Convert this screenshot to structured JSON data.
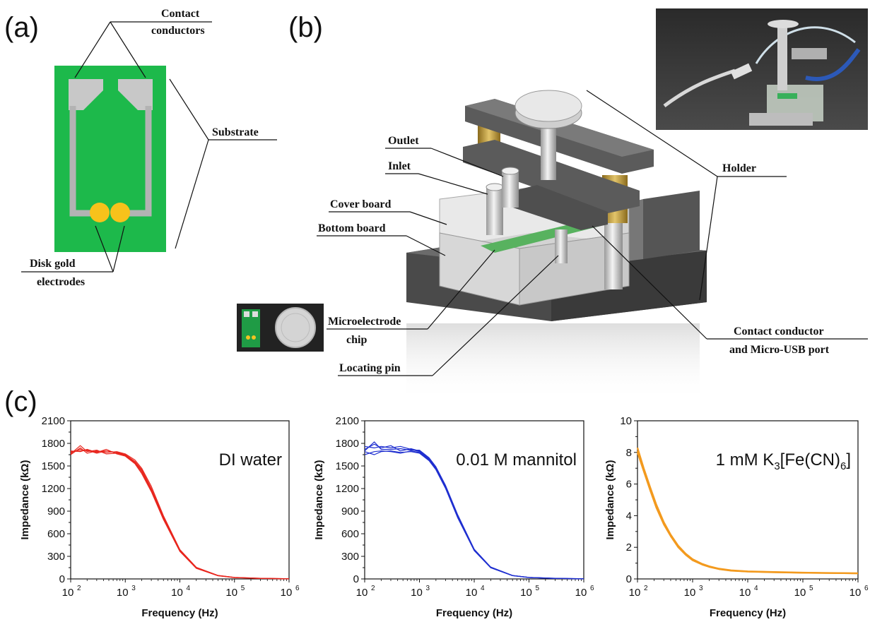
{
  "panels": {
    "a": "(a)",
    "b": "(b)",
    "c": "(c)"
  },
  "callouts": {
    "contact_conductors": [
      "Contact",
      "conductors"
    ],
    "substrate": "Substrate",
    "disk_gold_electrodes": [
      "Disk gold",
      "electrodes"
    ],
    "outlet": "Outlet",
    "inlet": "Inlet",
    "cover_board": "Cover board",
    "bottom_board": "Bottom board",
    "holder": "Holder",
    "microelectrode_chip": [
      "Microelectrode",
      "chip"
    ],
    "locating_pin": "Locating pin",
    "contact_conductor_usb": [
      "Contact conductor",
      "and Micro-USB port"
    ]
  },
  "colors": {
    "substrate_green": "#1db94b",
    "trace_gray": "#b3b3b3",
    "gold": "#f7c21b",
    "dark_board": "#555555",
    "series_di_water": "#e8251d",
    "series_mannitol": "#1f2fd0",
    "series_ferricyanide": "#f39a1e"
  },
  "chart_data": [
    {
      "type": "line",
      "annotation": "DI water",
      "xlabel": "Frequency (Hz)",
      "ylabel": "Impedance (kΩ)",
      "x_scale": "log",
      "xlim": [
        100,
        1000000
      ],
      "ylim": [
        0,
        2100
      ],
      "x_tick_labels": [
        {
          "base": "10",
          "exp": "2"
        },
        {
          "base": "10",
          "exp": "3"
        },
        {
          "base": "10",
          "exp": "4"
        },
        {
          "base": "10",
          "exp": "5"
        },
        {
          "base": "10",
          "exp": "6"
        }
      ],
      "y_ticks": [
        "0",
        "300",
        "600",
        "900",
        "1200",
        "1500",
        "1800",
        "2100"
      ],
      "y_tick_values": [
        0,
        300,
        600,
        900,
        1200,
        1500,
        1800,
        2100
      ],
      "color": "#e8251d",
      "x": [
        100,
        150,
        200,
        300,
        450,
        700,
        1000,
        1500,
        2000,
        3000,
        5000,
        10000,
        20000,
        50000,
        100000,
        300000,
        1000000
      ],
      "series": [
        {
          "values": [
            1680,
            1720,
            1700,
            1690,
            1700,
            1680,
            1650,
            1560,
            1450,
            1200,
            820,
            380,
            150,
            45,
            20,
            8,
            3
          ]
        },
        {
          "values": [
            1660,
            1770,
            1690,
            1710,
            1660,
            1670,
            1640,
            1540,
            1420,
            1180,
            800,
            370,
            145,
            43,
            19,
            7,
            2
          ]
        },
        {
          "values": [
            1700,
            1690,
            1720,
            1680,
            1720,
            1660,
            1630,
            1530,
            1400,
            1160,
            790,
            365,
            140,
            42,
            18,
            7,
            2
          ]
        },
        {
          "values": [
            1650,
            1740,
            1670,
            1700,
            1680,
            1690,
            1660,
            1580,
            1470,
            1230,
            840,
            390,
            155,
            47,
            21,
            8,
            3
          ]
        },
        {
          "values": [
            1690,
            1700,
            1710,
            1670,
            1700,
            1680,
            1640,
            1550,
            1440,
            1190,
            810,
            375,
            148,
            44,
            19,
            7,
            2
          ]
        }
      ]
    },
    {
      "type": "line",
      "annotation": "0.01 M mannitol",
      "xlabel": "Frequency (Hz)",
      "ylabel": "Impedance (kΩ)",
      "x_scale": "log",
      "xlim": [
        100,
        1000000
      ],
      "ylim": [
        0,
        2100
      ],
      "x_tick_labels": [
        {
          "base": "10",
          "exp": "2"
        },
        {
          "base": "10",
          "exp": "3"
        },
        {
          "base": "10",
          "exp": "4"
        },
        {
          "base": "10",
          "exp": "5"
        },
        {
          "base": "10",
          "exp": "6"
        }
      ],
      "y_ticks": [
        "0",
        "300",
        "600",
        "900",
        "1200",
        "1500",
        "1800",
        "2100"
      ],
      "y_tick_values": [
        0,
        300,
        600,
        900,
        1200,
        1500,
        1800,
        2100
      ],
      "color": "#1f2fd0",
      "x": [
        100,
        150,
        200,
        300,
        450,
        700,
        1000,
        1500,
        2000,
        3000,
        5000,
        10000,
        20000,
        50000,
        100000,
        300000,
        1000000
      ],
      "series": [
        {
          "values": [
            1720,
            1790,
            1740,
            1770,
            1700,
            1730,
            1700,
            1600,
            1480,
            1230,
            840,
            390,
            155,
            45,
            20,
            8,
            3
          ]
        },
        {
          "values": [
            1650,
            1690,
            1700,
            1690,
            1670,
            1700,
            1680,
            1580,
            1460,
            1210,
            820,
            380,
            150,
            44,
            19,
            7,
            2
          ]
        },
        {
          "values": [
            1760,
            1740,
            1760,
            1740,
            1760,
            1720,
            1690,
            1590,
            1470,
            1220,
            830,
            385,
            152,
            45,
            20,
            7,
            3
          ]
        },
        {
          "values": [
            1700,
            1820,
            1720,
            1720,
            1730,
            1710,
            1710,
            1610,
            1490,
            1240,
            850,
            395,
            158,
            46,
            21,
            8,
            3
          ]
        },
        {
          "values": [
            1690,
            1650,
            1690,
            1700,
            1680,
            1690,
            1670,
            1570,
            1450,
            1200,
            810,
            375,
            148,
            43,
            19,
            7,
            2
          ]
        }
      ]
    },
    {
      "type": "line",
      "annotation": {
        "pre": "1 mM K",
        "sub": "3",
        "post": "[Fe(CN)",
        "sub2": "6",
        "end": "]"
      },
      "xlabel": "Frequency (Hz)",
      "ylabel": "Impedance (kΩ)",
      "x_scale": "log",
      "xlim": [
        100,
        1000000
      ],
      "ylim": [
        0,
        10
      ],
      "x_tick_labels": [
        {
          "base": "10",
          "exp": "2"
        },
        {
          "base": "10",
          "exp": "3"
        },
        {
          "base": "10",
          "exp": "4"
        },
        {
          "base": "10",
          "exp": "5"
        },
        {
          "base": "10",
          "exp": "6"
        }
      ],
      "y_ticks": [
        "0",
        "2",
        "4",
        "6",
        "8",
        "10"
      ],
      "y_tick_values": [
        0,
        2,
        4,
        6,
        8,
        10
      ],
      "color": "#f39a1e",
      "x": [
        100,
        130,
        170,
        220,
        300,
        400,
        550,
        750,
        1000,
        1500,
        2000,
        3000,
        5000,
        10000,
        30000,
        100000,
        300000,
        1000000
      ],
      "series": [
        {
          "values": [
            8.3,
            7.0,
            5.8,
            4.7,
            3.6,
            2.8,
            2.1,
            1.6,
            1.25,
            0.95,
            0.8,
            0.65,
            0.55,
            0.48,
            0.44,
            0.4,
            0.38,
            0.36
          ]
        },
        {
          "values": [
            8.0,
            6.8,
            5.6,
            4.5,
            3.45,
            2.7,
            2.0,
            1.52,
            1.18,
            0.9,
            0.76,
            0.62,
            0.52,
            0.46,
            0.42,
            0.39,
            0.37,
            0.35
          ]
        },
        {
          "values": [
            8.1,
            6.9,
            5.7,
            4.6,
            3.5,
            2.75,
            2.05,
            1.56,
            1.2,
            0.92,
            0.78,
            0.63,
            0.53,
            0.47,
            0.43,
            0.39,
            0.37,
            0.35
          ]
        }
      ]
    }
  ]
}
